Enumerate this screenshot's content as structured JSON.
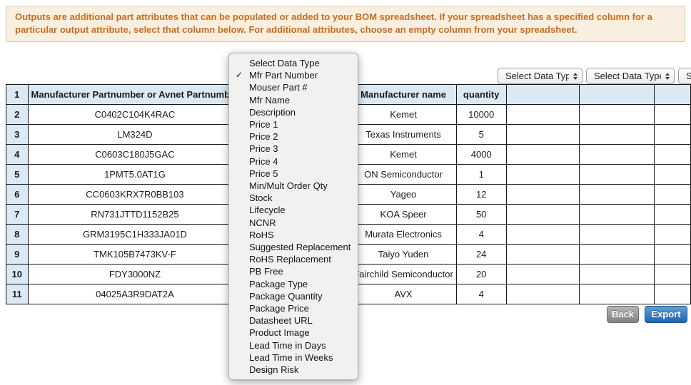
{
  "banner": {
    "text": "Outputs are additional part attributes that can be populated or added to your BOM spreadsheet. If your spreadsheet has a specified column for a particular output attribute, select that column below. For additional attributes, choose an empty column from your spreadsheet.",
    "bg_color": "#f9efe0",
    "text_color": "#c96e1e"
  },
  "column_selects": [
    {
      "label": "Select Data Type"
    },
    {
      "label": "Select Data Type"
    },
    {
      "label": "Select Data Type"
    }
  ],
  "dropdown": {
    "checked": "Mfr Part Number",
    "checkmark": "✓",
    "items": [
      "Select Data Type",
      "Mfr Part Number",
      "Mouser Part #",
      "Mfr Name",
      "Description",
      "Price 1",
      "Price 2",
      "Price 3",
      "Price 4",
      "Price 5",
      "Min/Mult Order Qty",
      "Stock",
      "Lifecycle",
      "NCNR",
      "RoHS",
      "Suggested Replacement",
      "RoHS Replacement",
      "PB Free",
      "Package Type",
      "Package Quantity",
      "Package Price",
      "Datasheet URL",
      "Product Image",
      "Lead Time in Days",
      "Lead Time in Weeks",
      "Design Risk"
    ]
  },
  "table": {
    "header": {
      "num": "1",
      "part": "Manufacturer Partnumber or Avnet Partnumber",
      "hidden": "",
      "manufacturer": "Manufacturer name",
      "quantity": "quantity",
      "extra1": "",
      "extra2": "",
      "extra3": ""
    },
    "rows": [
      {
        "num": "2",
        "part": "C0402C104K4RAC",
        "hidden": "",
        "manufacturer": "Kemet",
        "quantity": "10000",
        "extra1": "",
        "extra2": "",
        "extra3": ""
      },
      {
        "num": "3",
        "part": "LM324D",
        "hidden": "",
        "manufacturer": "Texas Instruments",
        "quantity": "5",
        "extra1": "",
        "extra2": "",
        "extra3": ""
      },
      {
        "num": "4",
        "part": "C0603C180J5GAC",
        "hidden": "",
        "manufacturer": "Kemet",
        "quantity": "4000",
        "extra1": "",
        "extra2": "",
        "extra3": ""
      },
      {
        "num": "5",
        "part": "1PMT5.0AT1G",
        "hidden": "",
        "manufacturer": "ON Semiconductor",
        "quantity": "1",
        "extra1": "",
        "extra2": "",
        "extra3": ""
      },
      {
        "num": "6",
        "part": "CC0603KRX7R0BB103",
        "hidden": "",
        "manufacturer": "Yageo",
        "quantity": "12",
        "extra1": "",
        "extra2": "",
        "extra3": ""
      },
      {
        "num": "7",
        "part": "RN731JTTD1152B25",
        "hidden": "",
        "manufacturer": "KOA Speer",
        "quantity": "50",
        "extra1": "",
        "extra2": "",
        "extra3": ""
      },
      {
        "num": "8",
        "part": "GRM3195C1H333JA01D",
        "hidden": "",
        "manufacturer": "Murata Electronics",
        "quantity": "4",
        "extra1": "",
        "extra2": "",
        "extra3": ""
      },
      {
        "num": "9",
        "part": "TMK105B7473KV-F",
        "hidden": "",
        "manufacturer": "Taiyo Yuden",
        "quantity": "24",
        "extra1": "",
        "extra2": "",
        "extra3": ""
      },
      {
        "num": "10",
        "part": "FDY3000NZ",
        "hidden": "",
        "manufacturer": "Fairchild Semiconductor",
        "quantity": "20",
        "extra1": "",
        "extra2": "",
        "extra3": ""
      },
      {
        "num": "11",
        "part": "04025A3R9DAT2A",
        "hidden": "",
        "manufacturer": "AVX",
        "quantity": "4",
        "extra1": "",
        "extra2": "",
        "extra3": ""
      }
    ]
  },
  "buttons": {
    "back": "Back",
    "export": "Export"
  },
  "colors": {
    "table_header_bg": "#dbe9f4",
    "export_blue": "#1e65b0",
    "back_gray": "#828282"
  }
}
